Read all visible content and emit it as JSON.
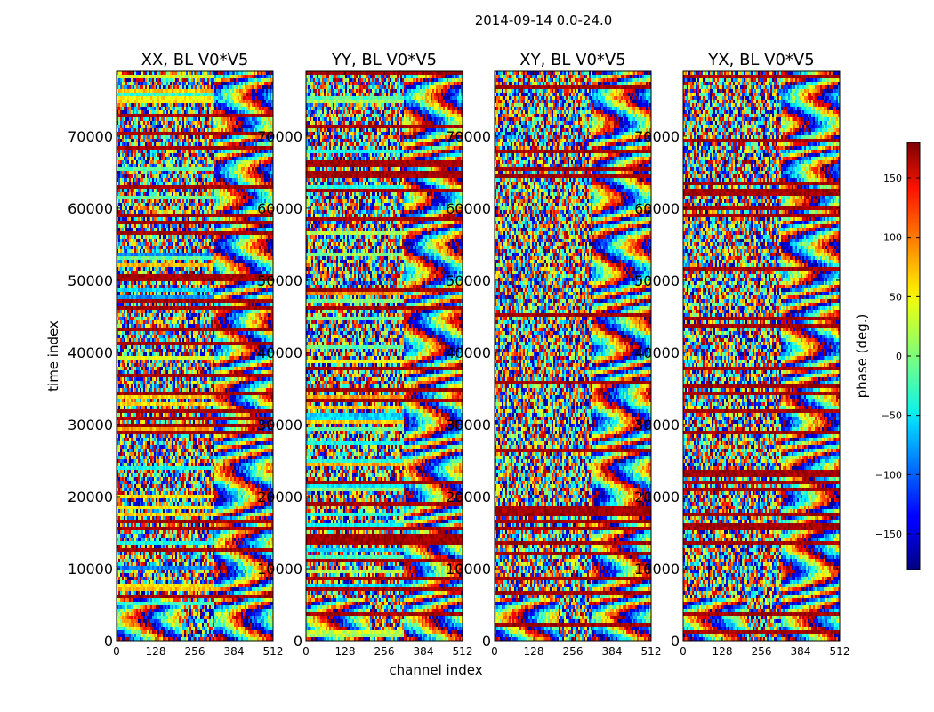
{
  "chart_data": {
    "type": "heatmap",
    "title": "2014-09-14 0.0-24.0",
    "xlabel": "channel index",
    "ylabel": "time index",
    "xlim": [
      0,
      512
    ],
    "ylim": [
      0,
      79000
    ],
    "xticks": [
      0,
      128,
      256,
      384,
      512
    ],
    "yticks": [
      0,
      10000,
      20000,
      30000,
      40000,
      50000,
      60000,
      70000
    ],
    "panels": [
      {
        "title": "XX, BL V0*V5"
      },
      {
        "title": "YY, BL V0*V5"
      },
      {
        "title": "XY, BL V0*V5"
      },
      {
        "title": "YX, BL V0*V5"
      }
    ],
    "colorbar": {
      "label": "phase (deg.)",
      "range": [
        -180,
        180
      ],
      "ticks": [
        -150,
        -100,
        -50,
        0,
        50,
        100,
        150
      ],
      "colormap": "jet"
    }
  }
}
